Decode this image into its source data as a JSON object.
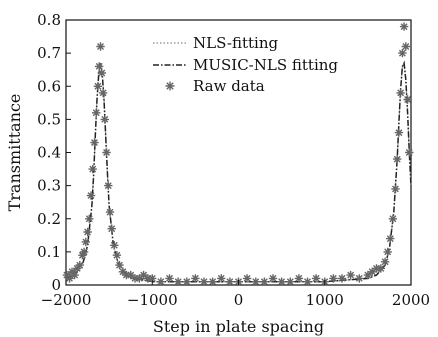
{
  "chart_data": {
    "type": "line",
    "xlabel": "Step in plate spacing",
    "ylabel": "Transmittance",
    "xlim": [
      -2000,
      2000
    ],
    "ylim": [
      0,
      0.8
    ],
    "xticks": [
      -2000,
      -1000,
      0,
      1000,
      2000
    ],
    "yticks": [
      0,
      0.1,
      0.2,
      0.3,
      0.4,
      0.5,
      0.6,
      0.7,
      0.8
    ],
    "xtick_labels": [
      "−2000",
      "−1000",
      "0",
      "1000",
      "2000"
    ],
    "ytick_labels": [
      "0",
      "0.1",
      "0.2",
      "0.3",
      "0.4",
      "0.5",
      "0.6",
      "0.7",
      "0.8"
    ],
    "grid": false,
    "legend_position": "top-center",
    "series": [
      {
        "name": "NLS-fitting",
        "style": "dotted",
        "color": "#888888",
        "x": [
          -2000,
          -1900,
          -1800,
          -1750,
          -1700,
          -1680,
          -1660,
          -1640,
          -1620,
          -1600,
          -1580,
          -1560,
          -1540,
          -1520,
          -1500,
          -1450,
          -1400,
          -1300,
          -1200,
          -1000,
          0,
          1000,
          1500,
          1600,
          1700,
          1750,
          1800,
          1840,
          1860,
          1880,
          1900,
          1920,
          1940,
          1960,
          1980,
          2000
        ],
        "y": [
          0.02,
          0.03,
          0.07,
          0.12,
          0.24,
          0.33,
          0.45,
          0.56,
          0.64,
          0.67,
          0.64,
          0.56,
          0.45,
          0.34,
          0.24,
          0.12,
          0.07,
          0.03,
          0.02,
          0.01,
          0.01,
          0.01,
          0.02,
          0.03,
          0.06,
          0.11,
          0.22,
          0.38,
          0.49,
          0.59,
          0.66,
          0.67,
          0.62,
          0.52,
          0.4,
          0.3
        ]
      },
      {
        "name": "MUSIC-NLS fitting",
        "style": "dash-dot",
        "color": "#222222",
        "x": [
          -2000,
          -1900,
          -1800,
          -1750,
          -1700,
          -1680,
          -1660,
          -1640,
          -1620,
          -1600,
          -1580,
          -1560,
          -1540,
          -1520,
          -1500,
          -1450,
          -1400,
          -1300,
          -1200,
          -1000,
          0,
          1000,
          1500,
          1600,
          1700,
          1750,
          1800,
          1840,
          1860,
          1880,
          1900,
          1920,
          1940,
          1960,
          1980,
          2000
        ],
        "y": [
          0.02,
          0.03,
          0.07,
          0.12,
          0.24,
          0.33,
          0.45,
          0.56,
          0.64,
          0.67,
          0.64,
          0.56,
          0.45,
          0.34,
          0.24,
          0.12,
          0.07,
          0.03,
          0.02,
          0.01,
          0.01,
          0.01,
          0.02,
          0.03,
          0.06,
          0.11,
          0.22,
          0.38,
          0.49,
          0.59,
          0.66,
          0.67,
          0.62,
          0.52,
          0.4,
          0.3
        ]
      },
      {
        "name": "Raw data",
        "style": "markers",
        "marker": "star",
        "color": "#666666",
        "x": [
          -1990,
          -1960,
          -1930,
          -1900,
          -1870,
          -1840,
          -1810,
          -1790,
          -1770,
          -1750,
          -1730,
          -1710,
          -1690,
          -1670,
          -1650,
          -1630,
          -1615,
          -1600,
          -1585,
          -1570,
          -1550,
          -1530,
          -1510,
          -1490,
          -1470,
          -1440,
          -1410,
          -1380,
          -1340,
          -1300,
          -1250,
          -1200,
          -1150,
          -1100,
          -1050,
          -1000,
          -900,
          -800,
          -700,
          -600,
          -500,
          -400,
          -300,
          -200,
          -100,
          0,
          100,
          200,
          300,
          400,
          500,
          600,
          700,
          800,
          900,
          1000,
          1100,
          1200,
          1300,
          1400,
          1500,
          1550,
          1600,
          1650,
          1700,
          1730,
          1760,
          1790,
          1820,
          1840,
          1860,
          1880,
          1900,
          1920,
          1940,
          1960,
          1980
        ],
        "y": [
          0.03,
          0.02,
          0.04,
          0.03,
          0.05,
          0.06,
          0.09,
          0.1,
          0.13,
          0.16,
          0.2,
          0.27,
          0.35,
          0.43,
          0.52,
          0.6,
          0.66,
          0.72,
          0.64,
          0.58,
          0.5,
          0.4,
          0.3,
          0.22,
          0.17,
          0.12,
          0.09,
          0.06,
          0.04,
          0.03,
          0.03,
          0.02,
          0.02,
          0.03,
          0.02,
          0.02,
          0.01,
          0.02,
          0.01,
          0.01,
          0.02,
          0.01,
          0.01,
          0.02,
          0.01,
          0.01,
          0.02,
          0.01,
          0.01,
          0.02,
          0.01,
          0.01,
          0.02,
          0.01,
          0.02,
          0.01,
          0.02,
          0.02,
          0.03,
          0.02,
          0.03,
          0.04,
          0.05,
          0.05,
          0.07,
          0.1,
          0.14,
          0.2,
          0.29,
          0.38,
          0.46,
          0.58,
          0.7,
          0.78,
          0.72,
          0.56,
          0.4
        ]
      }
    ]
  }
}
